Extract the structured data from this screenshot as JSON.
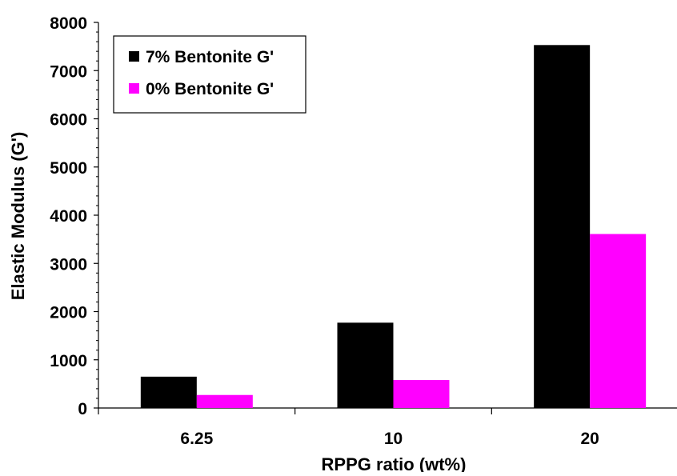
{
  "chart_data": {
    "type": "bar",
    "categories": [
      "6.25",
      "10",
      "20"
    ],
    "series": [
      {
        "name": "7% Bentonite G'",
        "color": "#000000",
        "values": [
          650,
          1770,
          7530
        ]
      },
      {
        "name": "0% Bentonite G'",
        "color": "#ff00ff",
        "values": [
          270,
          580,
          3610
        ]
      }
    ],
    "title": "",
    "xlabel": "RPPG ratio (wt%)",
    "ylabel": "Elastic Modulus (G')",
    "ylim": [
      0,
      8000
    ],
    "yticks": [
      0,
      1000,
      2000,
      3000,
      4000,
      5000,
      6000,
      7000,
      8000
    ],
    "legend_position": "top-left",
    "grid": false
  }
}
